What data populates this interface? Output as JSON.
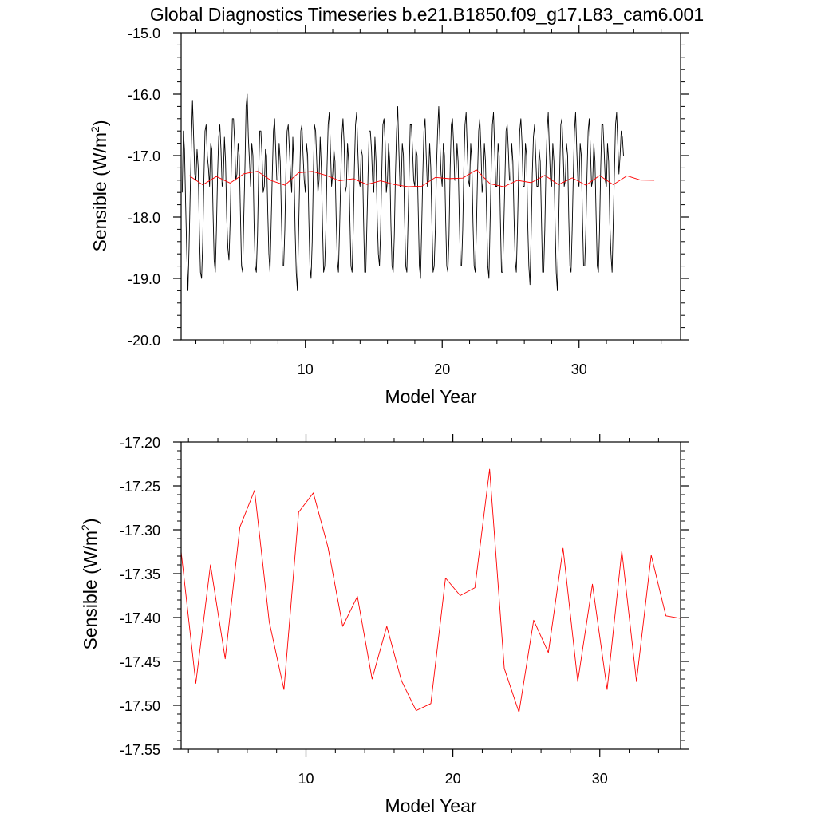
{
  "title": "Global Diagnostics Timeseries b.e21.B1850.f09_g17.L83_cam6.001",
  "chart_data": [
    {
      "type": "line",
      "xlabel": "Model Year",
      "ylabel_main": "Sensible (W/m",
      "ylabel_sup": "2",
      "ylabel_close": ")",
      "xlim": [
        0.92,
        37.42
      ],
      "ylim": [
        -20.0,
        -15.0
      ],
      "xticks": [
        10,
        20,
        30
      ],
      "xtick_labels": [
        "10",
        "20",
        "30"
      ],
      "yticks": [
        -20.0,
        -19.0,
        -18.0,
        -17.0,
        -16.0,
        -15.0
      ],
      "ytick_labels": [
        "-20.0",
        "-19.0",
        "-18.0",
        "-17.0",
        "-16.0",
        "-15.0"
      ],
      "series": [
        {
          "color": "#000000",
          "x_start": 1.0,
          "x_step": 0.08333,
          "values": [
            -17.6,
            -16.6,
            -16.9,
            -17.8,
            -18.6,
            -19.2,
            -18.5,
            -17.6,
            -16.8,
            -16.1,
            -16.7,
            -17.3,
            -17.4,
            -16.9,
            -17.2,
            -18.2,
            -18.9,
            -19.0,
            -18.4,
            -17.4,
            -16.6,
            -16.5,
            -17.0,
            -17.2,
            -17.5,
            -16.8,
            -16.9,
            -17.9,
            -18.7,
            -18.9,
            -18.2,
            -17.3,
            -16.7,
            -16.5,
            -16.9,
            -17.5,
            -17.4,
            -16.7,
            -17.1,
            -18.0,
            -18.5,
            -18.7,
            -18.1,
            -17.2,
            -16.4,
            -16.4,
            -16.8,
            -17.4,
            -17.3,
            -16.8,
            -17.0,
            -17.9,
            -18.8,
            -18.9,
            -18.0,
            -17.2,
            -16.2,
            -16.0,
            -16.7,
            -17.1,
            -17.5,
            -16.8,
            -17.0,
            -18.1,
            -18.8,
            -18.9,
            -18.3,
            -17.3,
            -16.6,
            -16.6,
            -17.0,
            -17.6,
            -17.5,
            -16.9,
            -17.0,
            -17.9,
            -18.6,
            -18.9,
            -18.1,
            -17.3,
            -16.6,
            -16.4,
            -16.9,
            -17.4,
            -17.4,
            -16.8,
            -17.1,
            -18.0,
            -18.8,
            -18.8,
            -18.2,
            -17.2,
            -16.6,
            -16.5,
            -16.9,
            -17.3,
            -17.6,
            -16.7,
            -17.2,
            -18.2,
            -18.9,
            -19.2,
            -18.3,
            -17.4,
            -16.6,
            -16.5,
            -17.0,
            -17.4,
            -17.6,
            -16.8,
            -17.0,
            -18.0,
            -18.8,
            -19.0,
            -18.4,
            -17.3,
            -16.5,
            -16.6,
            -17.1,
            -17.6,
            -17.4,
            -16.7,
            -17.2,
            -18.1,
            -18.9,
            -18.8,
            -18.2,
            -17.2,
            -16.5,
            -16.3,
            -16.9,
            -17.5,
            -17.3,
            -16.9,
            -17.1,
            -18.0,
            -18.7,
            -18.9,
            -18.2,
            -17.4,
            -16.7,
            -16.4,
            -16.8,
            -17.6,
            -17.5,
            -16.8,
            -17.1,
            -18.0,
            -18.8,
            -18.9,
            -18.2,
            -17.2,
            -16.5,
            -16.3,
            -16.9,
            -17.4,
            -17.5,
            -16.9,
            -17.0,
            -18.0,
            -18.9,
            -18.9,
            -18.1,
            -17.3,
            -16.6,
            -16.6,
            -16.9,
            -17.4,
            -17.6,
            -16.7,
            -17.1,
            -18.0,
            -18.6,
            -18.8,
            -18.2,
            -17.3,
            -16.5,
            -16.4,
            -16.8,
            -17.6,
            -17.4,
            -16.8,
            -17.1,
            -18.1,
            -18.8,
            -18.9,
            -18.3,
            -17.3,
            -16.6,
            -16.2,
            -16.9,
            -17.5,
            -17.5,
            -16.8,
            -17.0,
            -18.0,
            -18.8,
            -18.9,
            -18.1,
            -17.3,
            -16.5,
            -16.5,
            -16.9,
            -17.4,
            -17.5,
            -16.9,
            -17.0,
            -17.9,
            -18.8,
            -19.0,
            -18.2,
            -17.3,
            -16.6,
            -16.4,
            -17.0,
            -17.5,
            -17.4,
            -16.8,
            -17.2,
            -18.1,
            -18.9,
            -18.8,
            -18.2,
            -17.2,
            -16.6,
            -16.2,
            -16.8,
            -17.3,
            -17.5,
            -16.8,
            -17.0,
            -18.0,
            -18.8,
            -18.9,
            -18.3,
            -17.2,
            -16.5,
            -16.4,
            -16.8,
            -17.4,
            -17.4,
            -16.8,
            -17.1,
            -18.0,
            -18.8,
            -18.8,
            -18.2,
            -17.2,
            -16.5,
            -16.3,
            -16.9,
            -17.4,
            -17.5,
            -16.8,
            -17.1,
            -18.1,
            -18.8,
            -18.9,
            -18.2,
            -17.3,
            -16.6,
            -16.4,
            -16.9,
            -17.6,
            -17.4,
            -16.8,
            -17.1,
            -18.0,
            -18.8,
            -19.0,
            -18.1,
            -17.2,
            -16.5,
            -16.3,
            -16.9,
            -17.5,
            -17.5,
            -16.8,
            -17.0,
            -18.0,
            -18.9,
            -18.9,
            -18.2,
            -17.4,
            -16.6,
            -16.5,
            -16.9,
            -17.4,
            -17.4,
            -16.8,
            -17.1,
            -18.0,
            -18.7,
            -18.9,
            -18.2,
            -17.3,
            -16.6,
            -16.4,
            -16.8,
            -17.5,
            -17.5,
            -16.8,
            -17.0,
            -18.1,
            -18.8,
            -19.1,
            -18.3,
            -17.3,
            -16.7,
            -16.5,
            -17.0,
            -17.5,
            -17.5,
            -16.9,
            -17.1,
            -18.0,
            -18.9,
            -18.9,
            -18.2,
            -17.2,
            -16.6,
            -16.3,
            -16.9,
            -17.4,
            -17.5,
            -16.8,
            -17.1,
            -18.1,
            -18.9,
            -19.2,
            -18.3,
            -17.3,
            -16.5,
            -16.4,
            -16.9,
            -17.5,
            -17.4,
            -16.8,
            -17.0,
            -18.0,
            -18.8,
            -18.9,
            -18.2,
            -17.3,
            -16.6,
            -16.3,
            -16.9,
            -17.4,
            -17.5,
            -16.8,
            -17.0,
            -18.0,
            -18.8,
            -18.8,
            -18.2,
            -17.3,
            -16.6,
            -16.4,
            -16.9,
            -17.5,
            -17.4,
            -16.8,
            -17.1,
            -18.0,
            -18.8,
            -18.9,
            -18.2,
            -17.2,
            -16.5,
            -16.5,
            -16.9,
            -17.4,
            -17.5,
            -16.8,
            -17.1,
            -18.1,
            -18.6,
            -18.9,
            -18.1,
            -17.3,
            -16.5,
            -16.3,
            -16.8,
            -17.3,
            -17.0,
            -16.6,
            -16.7,
            -17.0
          ]
        },
        {
          "color": "#ff0000",
          "x": [
            1.5,
            2.5,
            3.5,
            4.5,
            5.5,
            6.5,
            7.5,
            8.5,
            9.5,
            10.5,
            11.5,
            12.5,
            13.5,
            14.5,
            15.5,
            16.5,
            17.5,
            18.5,
            19.5,
            20.5,
            21.5,
            22.5,
            23.5,
            24.5,
            25.5,
            26.5,
            27.5,
            28.5,
            29.5,
            30.5,
            31.5,
            32.5,
            33.5,
            34.5,
            35.5
          ],
          "values": [
            -17.325,
            -17.475,
            -17.34,
            -17.447,
            -17.297,
            -17.255,
            -17.405,
            -17.482,
            -17.28,
            -17.258,
            -17.32,
            -17.41,
            -17.376,
            -17.47,
            -17.41,
            -17.472,
            -17.506,
            -17.498,
            -17.355,
            -17.375,
            -17.366,
            -17.231,
            -17.458,
            -17.508,
            -17.403,
            -17.44,
            -17.321,
            -17.473,
            -17.362,
            -17.482,
            -17.324,
            -17.473,
            -17.329,
            -17.398,
            -17.401
          ]
        }
      ]
    },
    {
      "type": "line",
      "xlabel": "Model Year",
      "ylabel_main": "Sensible (W/m",
      "ylabel_sup": "2",
      "ylabel_close": ")",
      "xlim": [
        1.5,
        35.5
      ],
      "ylim": [
        -17.55,
        -17.2
      ],
      "xticks": [
        10,
        20,
        30
      ],
      "xtick_labels": [
        "10",
        "20",
        "30"
      ],
      "yticks": [
        -17.55,
        -17.5,
        -17.45,
        -17.4,
        -17.35,
        -17.3,
        -17.25,
        -17.2
      ],
      "ytick_labels": [
        "-17.55",
        "-17.50",
        "-17.45",
        "-17.40",
        "-17.35",
        "-17.30",
        "-17.25",
        "-17.20"
      ],
      "series": [
        {
          "color": "#ff0000",
          "x": [
            1.5,
            2.5,
            3.5,
            4.5,
            5.5,
            6.5,
            7.5,
            8.5,
            9.5,
            10.5,
            11.5,
            12.5,
            13.5,
            14.5,
            15.5,
            16.5,
            17.5,
            18.5,
            19.5,
            20.5,
            21.5,
            22.5,
            23.5,
            24.5,
            25.5,
            26.5,
            27.5,
            28.5,
            29.5,
            30.5,
            31.5,
            32.5,
            33.5,
            34.5,
            35.5
          ],
          "values": [
            -17.325,
            -17.475,
            -17.34,
            -17.447,
            -17.297,
            -17.255,
            -17.405,
            -17.482,
            -17.28,
            -17.258,
            -17.32,
            -17.41,
            -17.376,
            -17.47,
            -17.41,
            -17.472,
            -17.506,
            -17.498,
            -17.355,
            -17.375,
            -17.366,
            -17.231,
            -17.458,
            -17.508,
            -17.403,
            -17.44,
            -17.321,
            -17.473,
            -17.362,
            -17.482,
            -17.324,
            -17.473,
            -17.329,
            -17.398,
            -17.401
          ]
        }
      ]
    }
  ]
}
